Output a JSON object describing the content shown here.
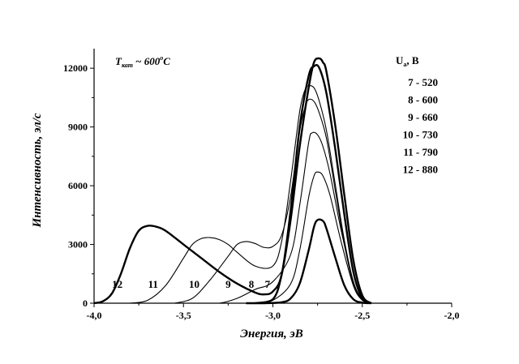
{
  "chart_data": {
    "type": "line",
    "title": "",
    "xlabel": "Энергия, эВ",
    "ylabel": "Интенсивность, эл/с",
    "xlim": [
      -4.0,
      -2.0
    ],
    "ylim": [
      0,
      13000
    ],
    "x_ticks": [
      -4.0,
      -3.5,
      -3.0,
      -2.5,
      -2.0
    ],
    "x_tick_labels": [
      "-4,0",
      "-3,5",
      "-3,0",
      "-2,5",
      "-2,0"
    ],
    "y_ticks": [
      0,
      3000,
      6000,
      9000,
      12000
    ],
    "y_tick_labels": [
      "0",
      "3000",
      "6000",
      "9000",
      "12000"
    ],
    "annotation": {
      "prefix": "T",
      "subscript": "кат",
      "value": "~ 600",
      "degree": "o",
      "unit": "C"
    },
    "legend": {
      "title": "U",
      "title_sub": "a",
      "title_unit": ", В",
      "entries": [
        "7 - 520",
        "8 - 600",
        "9 - 660",
        "10 - 730",
        "11 - 790",
        "12 - 880"
      ]
    },
    "series": [
      {
        "name": "7",
        "label": "7",
        "label_x": -3.03,
        "bold": true,
        "x": [
          -3.15,
          -3.05,
          -2.95,
          -2.9,
          -2.85,
          -2.8,
          -2.77,
          -2.75,
          -2.72,
          -2.7,
          -2.65,
          -2.6,
          -2.55,
          -2.5,
          -2.45
        ],
        "y": [
          0,
          0,
          50,
          250,
          1000,
          2700,
          3900,
          4250,
          4200,
          3800,
          2300,
          900,
          200,
          30,
          0
        ]
      },
      {
        "name": "8",
        "label": "8",
        "label_x": -3.12,
        "bold": false,
        "x": [
          -3.25,
          -3.1,
          -3.0,
          -2.9,
          -2.85,
          -2.8,
          -2.77,
          -2.75,
          -2.72,
          -2.68,
          -2.62,
          -2.55,
          -2.5,
          -2.45
        ],
        "y": [
          0,
          0,
          150,
          1000,
          2700,
          5400,
          6500,
          6700,
          6500,
          5500,
          3200,
          900,
          150,
          0
        ]
      },
      {
        "name": "9",
        "label": "9",
        "label_x": -3.25,
        "bold": false,
        "x": [
          -3.42,
          -3.3,
          -3.2,
          -3.1,
          -3.0,
          -2.9,
          -2.85,
          -2.8,
          -2.78,
          -2.75,
          -2.72,
          -2.68,
          -2.62,
          -2.55,
          -2.5,
          -2.45
        ],
        "y": [
          0,
          0,
          250,
          700,
          1100,
          2500,
          5000,
          8200,
          8700,
          8600,
          8000,
          6600,
          3800,
          1100,
          200,
          0
        ]
      },
      {
        "name": "10",
        "label": "10",
        "label_x": -3.44,
        "bold": false,
        "x": [
          -3.55,
          -3.45,
          -3.35,
          -3.25,
          -3.2,
          -3.15,
          -3.1,
          -3.05,
          -3.0,
          -2.95,
          -2.9,
          -2.85,
          -2.82,
          -2.8,
          -2.77,
          -2.74,
          -2.7,
          -2.65,
          -2.6,
          -2.55,
          -2.5,
          -2.45
        ],
        "y": [
          0,
          250,
          1200,
          2400,
          3000,
          3150,
          3050,
          2850,
          2900,
          3500,
          5500,
          8800,
          10000,
          10400,
          10300,
          9700,
          8400,
          5700,
          3000,
          1000,
          200,
          0
        ]
      },
      {
        "name": "11",
        "label": "11",
        "label_x": -3.67,
        "bold": false,
        "x": [
          -3.8,
          -3.7,
          -3.6,
          -3.5,
          -3.45,
          -3.4,
          -3.35,
          -3.3,
          -3.25,
          -3.2,
          -3.1,
          -3.0,
          -2.95,
          -2.9,
          -2.85,
          -2.82,
          -2.8,
          -2.77,
          -2.74,
          -2.7,
          -2.65,
          -2.6,
          -2.55,
          -2.5,
          -2.45
        ],
        "y": [
          0,
          150,
          900,
          2300,
          3000,
          3300,
          3350,
          3250,
          3000,
          2600,
          1900,
          1900,
          3200,
          6300,
          9800,
          10900,
          11100,
          11000,
          10300,
          8800,
          6000,
          3200,
          1100,
          200,
          0
        ]
      },
      {
        "name": "12",
        "label": "12",
        "label_x": -3.87,
        "bold": true,
        "x": [
          -4.0,
          -3.95,
          -3.9,
          -3.85,
          -3.8,
          -3.75,
          -3.7,
          -3.65,
          -3.6,
          -3.5,
          -3.4,
          -3.3,
          -3.2,
          -3.1,
          -3.05,
          -3.0,
          -2.95,
          -2.9,
          -2.85,
          -2.8,
          -2.77,
          -2.74,
          -2.7,
          -2.65,
          -2.6,
          -2.55,
          -2.5,
          -2.45
        ],
        "y": [
          0,
          100,
          500,
          1500,
          2800,
          3700,
          3950,
          3900,
          3700,
          3000,
          2300,
          1600,
          1000,
          550,
          450,
          600,
          1500,
          4800,
          9000,
          11600,
          12100,
          12000,
          10700,
          7800,
          4500,
          1600,
          250,
          0
        ]
      },
      {
        "name": "heavy",
        "label": "",
        "bold": true,
        "x": [
          -3.1,
          -3.0,
          -2.95,
          -2.9,
          -2.85,
          -2.8,
          -2.77,
          -2.74,
          -2.72,
          -2.7,
          -2.65,
          -2.6,
          -2.55,
          -2.5,
          -2.45
        ],
        "y": [
          0,
          200,
          1500,
          4300,
          8000,
          11000,
          12300,
          12500,
          12300,
          11800,
          9000,
          5500,
          2200,
          400,
          0
        ]
      }
    ]
  }
}
